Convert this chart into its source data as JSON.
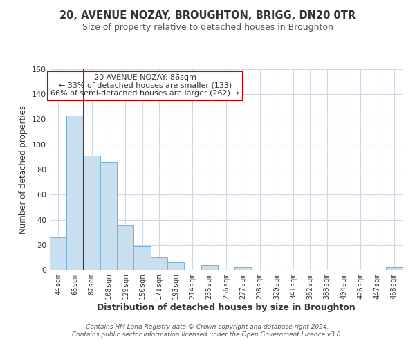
{
  "title": "20, AVENUE NOZAY, BROUGHTON, BRIGG, DN20 0TR",
  "subtitle": "Size of property relative to detached houses in Broughton",
  "xlabel": "Distribution of detached houses by size in Broughton",
  "ylabel": "Number of detached properties",
  "bar_labels": [
    "44sqm",
    "65sqm",
    "87sqm",
    "108sqm",
    "129sqm",
    "150sqm",
    "171sqm",
    "193sqm",
    "214sqm",
    "235sqm",
    "256sqm",
    "277sqm",
    "298sqm",
    "320sqm",
    "341sqm",
    "362sqm",
    "383sqm",
    "404sqm",
    "426sqm",
    "447sqm",
    "468sqm"
  ],
  "bar_values": [
    26,
    123,
    91,
    86,
    36,
    19,
    10,
    6,
    0,
    4,
    0,
    2,
    0,
    0,
    0,
    0,
    0,
    0,
    0,
    0,
    2
  ],
  "bar_color": "#c8dff0",
  "bar_edge_color": "#7bafd4",
  "vline_x": 1.5,
  "vline_color": "#cc0000",
  "ylim": [
    0,
    160
  ],
  "yticks": [
    0,
    20,
    40,
    60,
    80,
    100,
    120,
    140,
    160
  ],
  "annotation_title": "20 AVENUE NOZAY: 86sqm",
  "annotation_line1": "← 33% of detached houses are smaller (133)",
  "annotation_line2": "66% of semi-detached houses are larger (262) →",
  "annotation_box_color": "#ffffff",
  "annotation_box_edge": "#cc0000",
  "footer_line1": "Contains HM Land Registry data © Crown copyright and database right 2024.",
  "footer_line2": "Contains public sector information licensed under the Open Government Licence v3.0.",
  "background_color": "#ffffff",
  "grid_color": "#d0d8e4"
}
